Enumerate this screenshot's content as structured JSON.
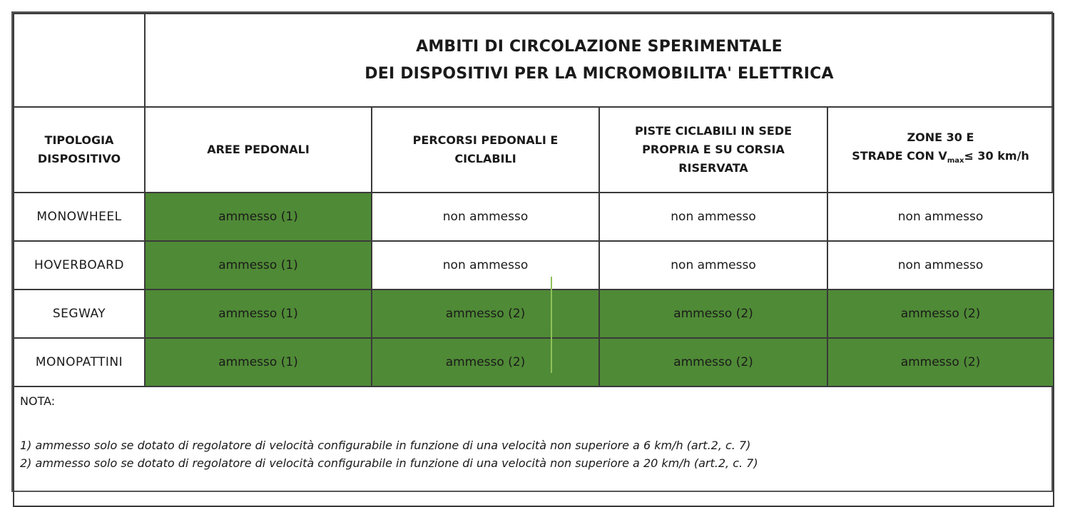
{
  "title": {
    "line1": "AMBITI DI CIRCOLAZIONE SPERIMENTALE",
    "line2": "DEI DISPOSITIVI PER LA MICROMOBILITA' ELETTRICA"
  },
  "columns": {
    "device": "TIPOLOGIA DISPOSITIVO",
    "c1": "AREE PEDONALI",
    "c2": "PERCORSI PEDONALI E CICLABILI",
    "c3": "PISTE CICLABILI IN SEDE PROPRIA E SU CORSIA RISERVATA",
    "c4_line1": "ZONE 30 E",
    "c4_pre": "STRADE CON V",
    "c4_sub": "max",
    "c4_post": "≤ 30 km/h"
  },
  "rows": [
    {
      "device": "MONOWHEEL",
      "cells": [
        "ammesso (1)",
        "non ammesso",
        "non ammesso",
        "non ammesso"
      ],
      "allowed": [
        true,
        false,
        false,
        false
      ]
    },
    {
      "device": "HOVERBOARD",
      "cells": [
        "ammesso (1)",
        "non ammesso",
        "non ammesso",
        "non ammesso"
      ],
      "allowed": [
        true,
        false,
        false,
        false
      ]
    },
    {
      "device": "SEGWAY",
      "cells": [
        "ammesso (1)",
        "ammesso (2)",
        "ammesso (2)",
        "ammesso (2)"
      ],
      "allowed": [
        true,
        true,
        true,
        true
      ]
    },
    {
      "device": "MONOPATTINI",
      "cells": [
        "ammesso (1)",
        "ammesso (2)",
        "ammesso (2)",
        "ammesso (2)"
      ],
      "allowed": [
        true,
        true,
        true,
        true
      ]
    }
  ],
  "notes": {
    "heading": "NOTA:",
    "items": [
      "1) ammesso solo se dotato di regolatore di velocità configurabile in funzione di una velocità non superiore a 6 km/h (art.2, c. 7)",
      "2) ammesso solo se dotato di regolatore di velocità configurabile in funzione di una velocità non superiore a 20 km/h (art.2, c. 7)"
    ]
  },
  "colors": {
    "allowed": "#4f8a36",
    "not_allowed": "#ffffff"
  }
}
